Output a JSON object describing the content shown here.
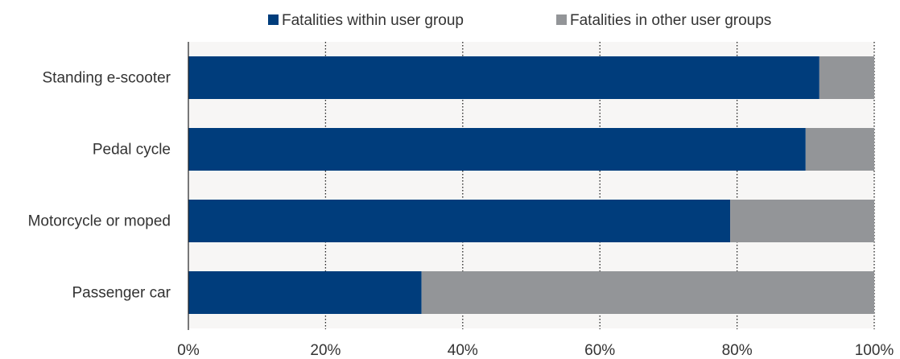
{
  "chart_data": {
    "type": "bar",
    "orientation": "horizontal",
    "stacked": true,
    "categories": [
      "Standing e-scooter",
      "Pedal cycle",
      "Motorcycle or moped",
      "Passenger car"
    ],
    "series": [
      {
        "name": "Fatalities within user group",
        "values": [
          92,
          90,
          79,
          34
        ],
        "color": "#003d7c"
      },
      {
        "name": "Fatalities in other user groups",
        "values": [
          8,
          10,
          21,
          66
        ],
        "color": "#939598"
      }
    ],
    "xlim": [
      0,
      100
    ],
    "x_ticks": [
      0,
      20,
      40,
      60,
      80,
      100
    ],
    "x_tick_labels": [
      "0%",
      "20%",
      "40%",
      "60%",
      "80%",
      "100%"
    ],
    "grid": "vertical-dotted",
    "legend_position": "top",
    "band_color": "#f7f6f5"
  }
}
